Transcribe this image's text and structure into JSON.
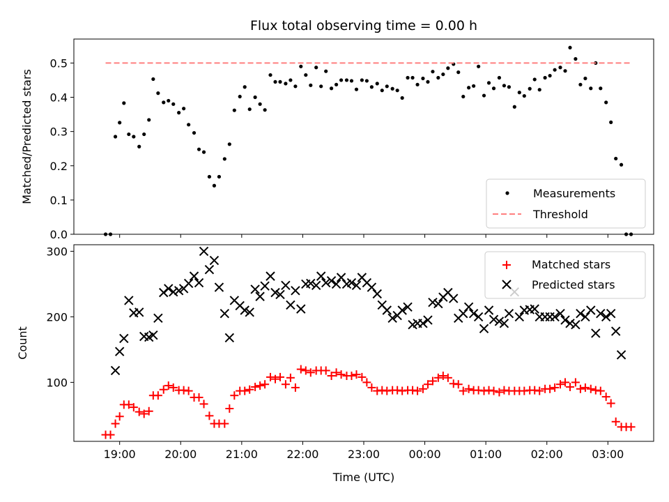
{
  "chart_data": [
    {
      "type": "scatter",
      "title": "Flux total observing time = 0.00 h",
      "xlabel": "",
      "ylabel": "Matched/Predicted stars",
      "x_unit": "hours since 18:00 UTC",
      "xlim": [
        18.25,
        27.75
      ],
      "ylim": [
        0.0,
        0.57
      ],
      "yticks": [
        0.0,
        0.1,
        0.2,
        0.3,
        0.4,
        0.5
      ],
      "ytick_labels": [
        "0.0",
        "0.1",
        "0.2",
        "0.3",
        "0.4",
        "0.5"
      ],
      "xticks": [
        19,
        20,
        21,
        22,
        23,
        24,
        25,
        26,
        27
      ],
      "xtick_labels": [
        "",
        "",
        "",
        "",
        "",
        "",
        "",
        "",
        ""
      ],
      "legend_position": "lower-right",
      "series": [
        {
          "name": "Measurements",
          "marker": "dot",
          "color": "#000000",
          "x": [
            18.77,
            18.85,
            18.93,
            19.0,
            19.07,
            19.15,
            19.23,
            19.32,
            19.4,
            19.48,
            19.55,
            19.63,
            19.72,
            19.8,
            19.88,
            19.97,
            20.05,
            20.13,
            20.22,
            20.3,
            20.38,
            20.47,
            20.55,
            20.63,
            20.72,
            20.8,
            20.88,
            20.97,
            21.05,
            21.13,
            21.22,
            21.3,
            21.38,
            21.47,
            21.55,
            21.63,
            21.72,
            21.8,
            21.88,
            21.97,
            22.05,
            22.13,
            22.22,
            22.3,
            22.38,
            22.47,
            22.55,
            22.63,
            22.72,
            22.8,
            22.88,
            22.97,
            23.05,
            23.13,
            23.22,
            23.3,
            23.38,
            23.47,
            23.55,
            23.63,
            23.72,
            23.8,
            23.88,
            23.97,
            24.05,
            24.13,
            24.22,
            24.3,
            24.38,
            24.47,
            24.55,
            24.63,
            24.72,
            24.8,
            24.88,
            24.97,
            25.05,
            25.13,
            25.22,
            25.3,
            25.38,
            25.47,
            25.55,
            25.63,
            25.72,
            25.8,
            25.88,
            25.97,
            26.05,
            26.13,
            26.22,
            26.3,
            26.38,
            26.47,
            26.55,
            26.63,
            26.72,
            26.8,
            26.88,
            26.97,
            27.05,
            27.13,
            27.22,
            27.3,
            27.38
          ],
          "y": [
            0.0,
            0.0,
            0.285,
            0.326,
            0.383,
            0.292,
            0.285,
            0.256,
            0.292,
            0.334,
            0.453,
            0.412,
            0.385,
            0.39,
            0.38,
            0.355,
            0.367,
            0.32,
            0.296,
            0.248,
            0.24,
            0.168,
            0.142,
            0.168,
            0.22,
            0.263,
            0.362,
            0.402,
            0.43,
            0.365,
            0.4,
            0.38,
            0.363,
            0.465,
            0.445,
            0.445,
            0.44,
            0.45,
            0.432,
            0.49,
            0.465,
            0.435,
            0.487,
            0.432,
            0.476,
            0.426,
            0.437,
            0.45,
            0.45,
            0.448,
            0.423,
            0.45,
            0.448,
            0.43,
            0.44,
            0.42,
            0.432,
            0.425,
            0.42,
            0.398,
            0.457,
            0.457,
            0.437,
            0.455,
            0.445,
            0.475,
            0.457,
            0.467,
            0.485,
            0.497,
            0.473,
            0.402,
            0.428,
            0.433,
            0.49,
            0.405,
            0.442,
            0.426,
            0.457,
            0.434,
            0.43,
            0.372,
            0.414,
            0.404,
            0.425,
            0.452,
            0.422,
            0.457,
            0.463,
            0.48,
            0.487,
            0.477,
            0.545,
            0.512,
            0.437,
            0.455,
            0.426,
            0.5,
            0.426,
            0.385,
            0.327,
            0.221,
            0.203,
            0.0,
            0.0
          ]
        },
        {
          "name": "Threshold",
          "marker": "dashed-line",
          "color": "#ff7f7f",
          "x": [
            18.77,
            27.38
          ],
          "y": [
            0.5,
            0.5
          ]
        }
      ]
    },
    {
      "type": "scatter",
      "title": "",
      "xlabel": "Time (UTC)",
      "ylabel": "Count",
      "x_unit": "hours since 18:00 UTC",
      "xlim": [
        18.25,
        27.75
      ],
      "ylim": [
        10,
        310
      ],
      "yticks": [
        100,
        200,
        300
      ],
      "ytick_labels": [
        "100",
        "200",
        "300"
      ],
      "xticks": [
        19,
        20,
        21,
        22,
        23,
        24,
        25,
        26,
        27
      ],
      "xtick_labels": [
        "19:00",
        "20:00",
        "21:00",
        "22:00",
        "23:00",
        "00:00",
        "01:00",
        "02:00",
        "03:00"
      ],
      "legend_position": "upper-right",
      "series": [
        {
          "name": "Matched stars",
          "marker": "plus",
          "color": "#ff0000",
          "x": [
            18.77,
            18.85,
            18.93,
            19.0,
            19.07,
            19.15,
            19.23,
            19.32,
            19.4,
            19.48,
            19.55,
            19.63,
            19.72,
            19.8,
            19.88,
            19.97,
            20.05,
            20.13,
            20.22,
            20.3,
            20.38,
            20.47,
            20.55,
            20.63,
            20.72,
            20.8,
            20.88,
            20.97,
            21.05,
            21.13,
            21.22,
            21.3,
            21.38,
            21.47,
            21.55,
            21.63,
            21.72,
            21.8,
            21.88,
            21.97,
            22.05,
            22.13,
            22.22,
            22.3,
            22.38,
            22.47,
            22.55,
            22.63,
            22.72,
            22.8,
            22.88,
            22.97,
            23.05,
            23.13,
            23.22,
            23.3,
            23.38,
            23.47,
            23.55,
            23.63,
            23.72,
            23.8,
            23.88,
            23.97,
            24.05,
            24.13,
            24.22,
            24.3,
            24.38,
            24.47,
            24.55,
            24.63,
            24.72,
            24.8,
            24.88,
            24.97,
            25.05,
            25.13,
            25.22,
            25.3,
            25.38,
            25.47,
            25.55,
            25.63,
            25.72,
            25.8,
            25.88,
            25.97,
            26.05,
            26.13,
            26.22,
            26.3,
            26.38,
            26.47,
            26.55,
            26.63,
            26.72,
            26.8,
            26.88,
            26.97,
            27.05,
            27.13,
            27.22,
            27.3,
            27.38
          ],
          "y": [
            20,
            20,
            37,
            48,
            66,
            66,
            62,
            55,
            52,
            56,
            80,
            80,
            89,
            95,
            92,
            88,
            88,
            87,
            77,
            77,
            67,
            49,
            37,
            37,
            37,
            60,
            80,
            87,
            87,
            89,
            93,
            95,
            97,
            108,
            105,
            108,
            97,
            107,
            92,
            120,
            118,
            115,
            118,
            118,
            118,
            110,
            115,
            112,
            110,
            110,
            112,
            108,
            100,
            92,
            87,
            88,
            87,
            88,
            88,
            87,
            88,
            88,
            87,
            90,
            97,
            102,
            107,
            110,
            107,
            98,
            97,
            87,
            90,
            88,
            88,
            87,
            88,
            87,
            85,
            88,
            87,
            87,
            87,
            87,
            88,
            88,
            87,
            90,
            90,
            92,
            97,
            100,
            93,
            100,
            90,
            92,
            90,
            88,
            87,
            78,
            68,
            40,
            32,
            32,
            32
          ]
        },
        {
          "name": "Predicted stars",
          "marker": "x",
          "color": "#000000",
          "x": [
            18.93,
            19.0,
            19.07,
            19.15,
            19.23,
            19.32,
            19.4,
            19.48,
            19.55,
            19.63,
            19.72,
            19.8,
            19.88,
            19.97,
            20.05,
            20.13,
            20.22,
            20.3,
            20.38,
            20.47,
            20.55,
            20.63,
            20.72,
            20.8,
            20.88,
            20.97,
            21.05,
            21.13,
            21.22,
            21.3,
            21.38,
            21.47,
            21.55,
            21.63,
            21.72,
            21.8,
            21.88,
            21.97,
            22.05,
            22.13,
            22.22,
            22.3,
            22.38,
            22.47,
            22.55,
            22.63,
            22.72,
            22.8,
            22.88,
            22.97,
            23.05,
            23.13,
            23.22,
            23.3,
            23.38,
            23.47,
            23.55,
            23.63,
            23.72,
            23.8,
            23.88,
            23.97,
            24.05,
            24.13,
            24.22,
            24.3,
            24.38,
            24.47,
            24.55,
            24.63,
            24.72,
            24.8,
            24.88,
            24.97,
            25.05,
            25.13,
            25.22,
            25.3,
            25.38,
            25.47,
            25.55,
            25.63,
            25.72,
            25.8,
            25.88,
            25.97,
            26.05,
            26.13,
            26.22,
            26.3,
            26.38,
            26.47,
            26.55,
            26.63,
            26.72,
            26.8,
            26.88,
            26.97,
            27.05,
            27.13,
            27.22
          ],
          "y": [
            118,
            147,
            167,
            225,
            206,
            207,
            170,
            169,
            172,
            198,
            237,
            243,
            238,
            240,
            243,
            251,
            262,
            252,
            300,
            272,
            286,
            245,
            205,
            168,
            225,
            217,
            210,
            207,
            242,
            231,
            247,
            262,
            237,
            234,
            248,
            218,
            240,
            212,
            250,
            251,
            248,
            262,
            252,
            255,
            250,
            260,
            250,
            252,
            248,
            260,
            252,
            245,
            235,
            218,
            210,
            198,
            202,
            210,
            215,
            188,
            190,
            190,
            195,
            222,
            220,
            230,
            237,
            228,
            198,
            205,
            215,
            205,
            200,
            182,
            210,
            196,
            193,
            190,
            205,
            238,
            200,
            210,
            211,
            212,
            200,
            200,
            200,
            200,
            205,
            195,
            190,
            188,
            205,
            200,
            210,
            175,
            205,
            200,
            205,
            178,
            142
          ]
        }
      ]
    }
  ]
}
